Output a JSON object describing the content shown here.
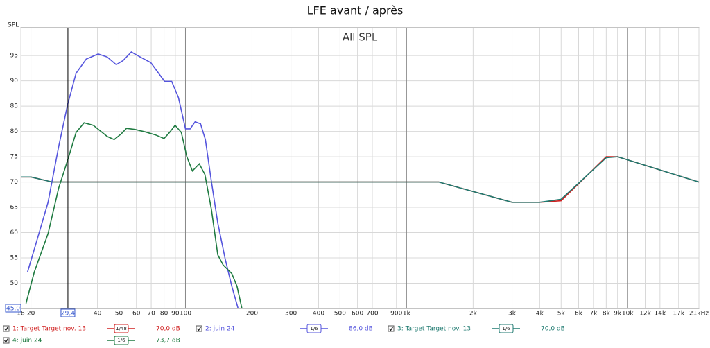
{
  "chart_data": {
    "type": "line",
    "title": "LFE avant / après",
    "plot_label": "All SPL",
    "y_axis_label": "SPL",
    "x_scale": "log",
    "grid": true,
    "xlim": [
      18,
      21000
    ],
    "ylim": [
      45,
      100.5
    ],
    "xticks": [
      18,
      20,
      40,
      50,
      60,
      70,
      80,
      90,
      100,
      200,
      300,
      400,
      500,
      600,
      700,
      900,
      {
        "value": 1000,
        "label": "1k"
      },
      {
        "value": 2000,
        "label": "2k"
      },
      {
        "value": 3000,
        "label": "3k"
      },
      {
        "value": 4000,
        "label": "4k"
      },
      {
        "value": 5000,
        "label": "5k"
      },
      {
        "value": 6000,
        "label": "6k"
      },
      {
        "value": 7000,
        "label": "7k"
      },
      {
        "value": 8000,
        "label": "8k"
      },
      {
        "value": 9000,
        "label": "9k"
      },
      {
        "value": 10000,
        "label": "10k"
      },
      {
        "value": 12000,
        "label": "12k"
      },
      {
        "value": 14000,
        "label": "14k"
      },
      {
        "value": 17000,
        "label": "17k"
      },
      {
        "value": 21000,
        "label": "21kHz"
      }
    ],
    "yticks": [
      50,
      55,
      60,
      65,
      70,
      75,
      80,
      85,
      90,
      95
    ],
    "cursor": {
      "x": 29.4,
      "x_label": "29,4",
      "y": 45,
      "y_label": "45,0"
    },
    "series": [
      {
        "name": "1: Target Target nov. 13",
        "color": "#d02020",
        "smoothing": "1/48",
        "cursor_value": "70,0 dB",
        "x": [
          18,
          20,
          25,
          1400,
          3000,
          4000,
          5000,
          8000,
          9000,
          21000
        ],
        "values": [
          71,
          71,
          70,
          70,
          66,
          66,
          66.3,
          75,
          75,
          70
        ]
      },
      {
        "name": "2: juin 24",
        "color": "#5555dd",
        "smoothing": "1/6",
        "cursor_value": "86,0 dB",
        "x": [
          19.3,
          21.5,
          23.9,
          26.7,
          29.3,
          32,
          35.6,
          40.3,
          44.3,
          48.6,
          52.2,
          56.9,
          62.5,
          69.7,
          80.5,
          86.6,
          93,
          100,
          105,
          110.6,
          117,
          123,
          131,
          140,
          151,
          162,
          173
        ],
        "values": [
          52.2,
          59.1,
          66,
          77,
          85.3,
          91.5,
          94.3,
          95.3,
          94.7,
          93.2,
          94,
          95.7,
          94.7,
          93.6,
          89.9,
          89.9,
          86.7,
          80.5,
          80.5,
          81.9,
          81.5,
          78.4,
          70.1,
          61.9,
          54.9,
          49.4,
          45
        ]
      },
      {
        "name": "3: Target Target nov. 13",
        "color": "#1f7a70",
        "smoothing": "1/6",
        "cursor_value": "70,0 dB",
        "x": [
          18,
          20,
          25,
          1400,
          3000,
          4000,
          5000,
          8000,
          9000,
          21000
        ],
        "values": [
          71,
          71,
          70,
          70,
          66,
          66,
          66.6,
          74.8,
          75,
          70
        ]
      },
      {
        "name": "4: juin 24",
        "color": "#1e7a40",
        "smoothing": "1/6",
        "cursor_value": "73,7 dB",
        "x": [
          19,
          20.7,
          23.9,
          26.7,
          29.3,
          32,
          34.8,
          38.3,
          44.3,
          47.6,
          51.2,
          54.1,
          59,
          65.8,
          73.3,
          80,
          84.7,
          89.8,
          95.8,
          101.5,
          107.5,
          115.5,
          122.4,
          131,
          140,
          148,
          162,
          171,
          180
        ],
        "values": [
          46,
          52.2,
          59.8,
          68.8,
          74.3,
          79.8,
          81.7,
          81.2,
          79,
          78.4,
          79.5,
          80.6,
          80.4,
          79.9,
          79.3,
          78.6,
          79.8,
          81.2,
          79.8,
          75,
          72.2,
          73.6,
          71.5,
          64.6,
          55.6,
          53.6,
          51.9,
          49.4,
          45
        ]
      }
    ]
  }
}
